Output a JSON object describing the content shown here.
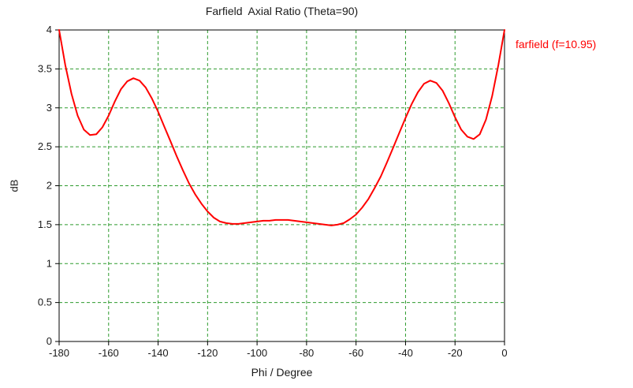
{
  "chart": {
    "title": "Farfield  Axial Ratio (Theta=90)",
    "legend_label": "farfield (f=10.95)",
    "xlabel": "Phi / Degree",
    "ylabel": "dB"
  },
  "colors": {
    "series": "#ff0000",
    "grid": "#2e9b2e",
    "axis": "#000000",
    "background": "#ffffff",
    "legend_text": "#ff0000"
  },
  "chart_data": {
    "type": "line",
    "title": "Farfield  Axial Ratio (Theta=90)",
    "xlabel": "Phi / Degree",
    "ylabel": "dB",
    "xlim": [
      -180,
      0
    ],
    "ylim": [
      0,
      4
    ],
    "x_ticks": [
      -180,
      -160,
      -140,
      -120,
      -100,
      -80,
      -60,
      -40,
      -20,
      0
    ],
    "y_ticks": [
      0,
      0.5,
      1,
      1.5,
      2,
      2.5,
      3,
      3.5,
      4
    ],
    "grid": "dashed",
    "legend_position": "right-top",
    "series": [
      {
        "name": "farfield (f=10.95)",
        "color": "#ff0000",
        "x": [
          -180,
          -177.5,
          -175,
          -172.5,
          -170,
          -167.5,
          -165,
          -162.5,
          -160,
          -157.5,
          -155,
          -152.5,
          -150,
          -147.5,
          -145,
          -142.5,
          -140,
          -137.5,
          -135,
          -132.5,
          -130,
          -127.5,
          -125,
          -122.5,
          -120,
          -117.5,
          -115,
          -112.5,
          -110,
          -107.5,
          -105,
          -102.5,
          -100,
          -97.5,
          -95,
          -92.5,
          -90,
          -87.5,
          -85,
          -82.5,
          -80,
          -77.5,
          -75,
          -72.5,
          -70,
          -67.5,
          -65,
          -62.5,
          -60,
          -57.5,
          -55,
          -52.5,
          -50,
          -47.5,
          -45,
          -42.5,
          -40,
          -37.5,
          -35,
          -32.5,
          -30,
          -27.5,
          -25,
          -22.5,
          -20,
          -17.5,
          -15,
          -12.5,
          -10,
          -7.5,
          -5,
          -2.5,
          0
        ],
        "y": [
          4.0,
          3.55,
          3.18,
          2.9,
          2.72,
          2.65,
          2.66,
          2.75,
          2.9,
          3.08,
          3.24,
          3.34,
          3.38,
          3.35,
          3.26,
          3.12,
          2.95,
          2.76,
          2.57,
          2.38,
          2.2,
          2.03,
          1.89,
          1.77,
          1.67,
          1.59,
          1.54,
          1.52,
          1.51,
          1.51,
          1.52,
          1.53,
          1.54,
          1.55,
          1.55,
          1.56,
          1.56,
          1.56,
          1.55,
          1.54,
          1.53,
          1.52,
          1.51,
          1.5,
          1.49,
          1.5,
          1.52,
          1.57,
          1.63,
          1.72,
          1.83,
          1.97,
          2.12,
          2.3,
          2.49,
          2.68,
          2.87,
          3.05,
          3.2,
          3.31,
          3.35,
          3.32,
          3.22,
          3.06,
          2.88,
          2.72,
          2.63,
          2.6,
          2.66,
          2.85,
          3.15,
          3.55,
          4.0
        ]
      }
    ]
  }
}
